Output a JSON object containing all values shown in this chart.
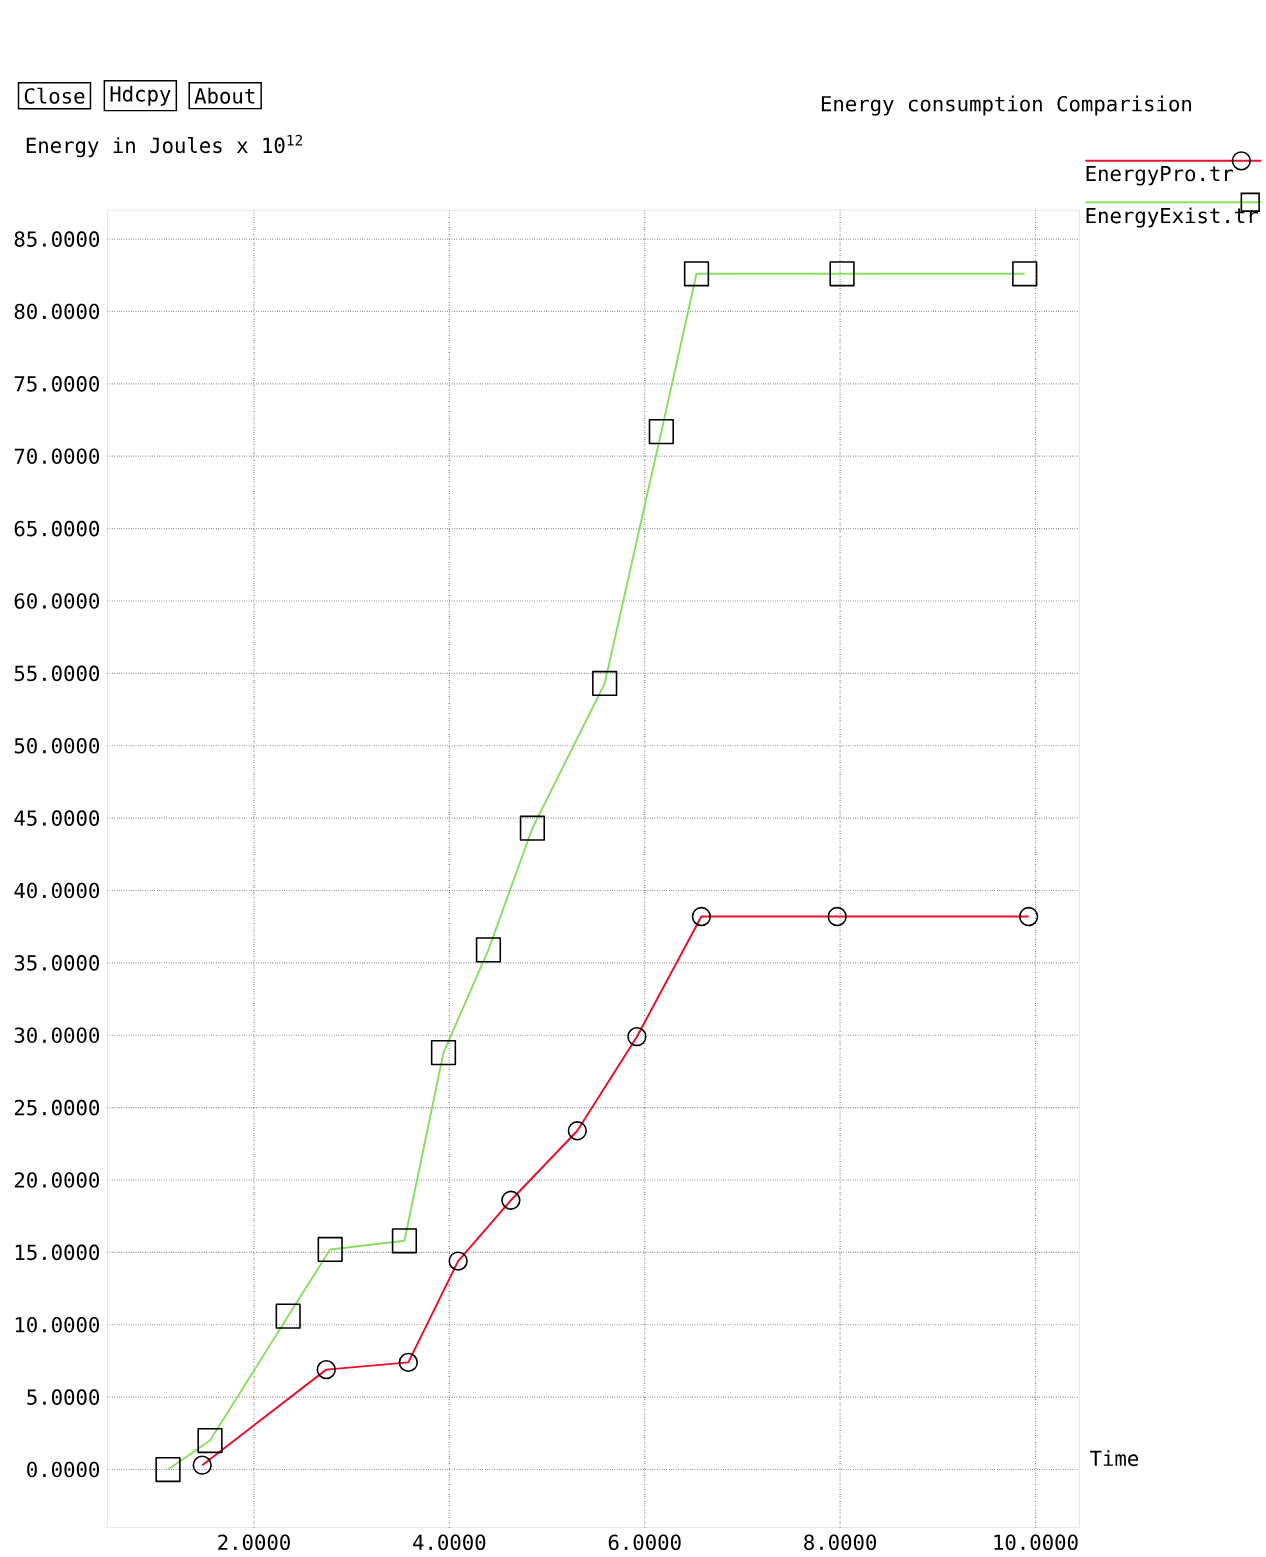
{
  "chart_data": {
    "type": "line",
    "title": "Energy consumption Comparision",
    "xlabel": "Time",
    "ylabel": "Energy in Joules x 10$^{12}$",
    "annotations": [
      "Close",
      "Hdcpy",
      "About"
    ],
    "xlim": [
      0.5,
      10.45
    ],
    "ylim": [
      -4,
      87
    ],
    "xticks": [
      {
        "value": 2,
        "label": "2.0000"
      },
      {
        "value": 4,
        "label": "4.0000"
      },
      {
        "value": 6,
        "label": "6.0000"
      },
      {
        "value": 8,
        "label": "8.0000"
      },
      {
        "value": 10,
        "label": "10.0000"
      }
    ],
    "yticks": [
      {
        "value": 0,
        "label": "0.0000"
      },
      {
        "value": 5,
        "label": "5.0000"
      },
      {
        "value": 10,
        "label": "10.0000"
      },
      {
        "value": 15,
        "label": "15.0000"
      },
      {
        "value": 20,
        "label": "20.0000"
      },
      {
        "value": 25,
        "label": "25.0000"
      },
      {
        "value": 30,
        "label": "30.0000"
      },
      {
        "value": 35,
        "label": "35.0000"
      },
      {
        "value": 40,
        "label": "40.0000"
      },
      {
        "value": 45,
        "label": "45.0000"
      },
      {
        "value": 50,
        "label": "50.0000"
      },
      {
        "value": 55,
        "label": "55.0000"
      },
      {
        "value": 60,
        "label": "60.0000"
      },
      {
        "value": 65,
        "label": "65.0000"
      },
      {
        "value": 70,
        "label": "70.0000"
      },
      {
        "value": 75,
        "label": "75.0000"
      },
      {
        "value": 80,
        "label": "80.0000"
      },
      {
        "value": 85,
        "label": "85.0000"
      }
    ],
    "grid": true,
    "legend": "top right",
    "series": [
      {
        "name": "EnergyPro.tr",
        "color": "#e8102a",
        "marker": "circle",
        "x": [
          1.47,
          2.74,
          3.58,
          4.09,
          4.63,
          5.31,
          5.92,
          6.58,
          7.97,
          9.93
        ],
        "values": [
          0.3,
          6.9,
          7.4,
          14.4,
          18.6,
          23.4,
          29.9,
          38.2,
          38.2,
          38.2
        ]
      },
      {
        "name": "EnergyExist.tr",
        "color": "#88e060",
        "marker": "square",
        "x": [
          1.12,
          1.55,
          2.35,
          2.78,
          3.54,
          3.94,
          4.4,
          4.85,
          5.59,
          6.17,
          6.53,
          8.02,
          9.89
        ],
        "values": [
          0,
          2.0,
          10.6,
          15.2,
          15.8,
          28.8,
          35.9,
          44.3,
          54.3,
          71.7,
          82.6,
          82.6,
          82.6
        ]
      }
    ]
  }
}
